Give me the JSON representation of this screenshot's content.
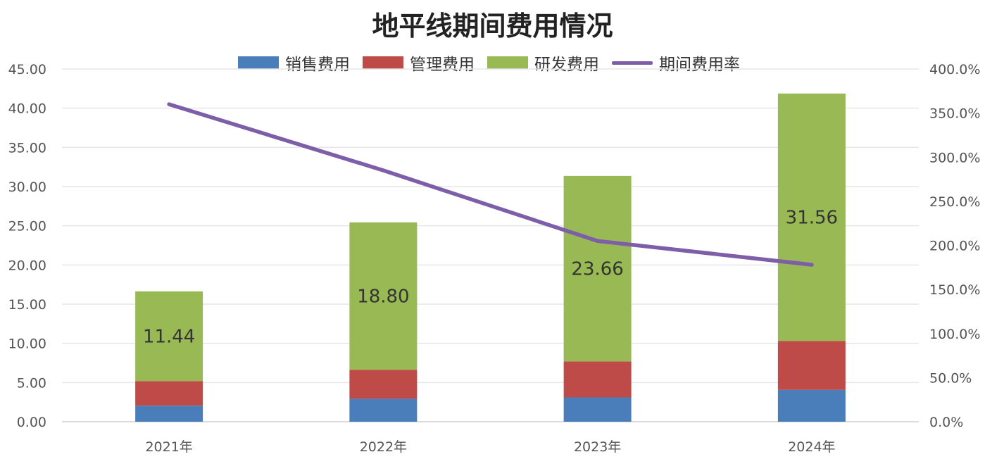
{
  "chart_data": {
    "type": "bar",
    "stacked": true,
    "title": "地平线期间费用情况",
    "categories": [
      "2021年",
      "2022年",
      "2023年",
      "2024年"
    ],
    "series": [
      {
        "name": "销售费用",
        "kind": "bar",
        "axis": "left",
        "color": "#4a7ebb",
        "values": [
          2.05,
          2.93,
          3.1,
          4.06
        ]
      },
      {
        "name": "管理费用",
        "kind": "bar",
        "axis": "left",
        "color": "#be4b48",
        "values": [
          3.14,
          3.7,
          4.6,
          6.25
        ]
      },
      {
        "name": "研发费用",
        "kind": "bar",
        "axis": "left",
        "color": "#98b954",
        "values": [
          11.44,
          18.8,
          23.66,
          31.56
        ],
        "data_labels": [
          "11.44",
          "18.80",
          "23.66",
          "31.56"
        ]
      },
      {
        "name": "期间费用率",
        "kind": "line",
        "axis": "right",
        "color": "#7e5ea8",
        "values": [
          360,
          285,
          205,
          178
        ]
      }
    ],
    "y_left": {
      "min": 0,
      "max": 45,
      "ticks": [
        "0.00",
        "5.00",
        "10.00",
        "15.00",
        "20.00",
        "25.00",
        "30.00",
        "35.00",
        "40.00",
        "45.00"
      ]
    },
    "y_right": {
      "min": 0,
      "max": 400,
      "ticks": [
        "0.0%",
        "50.0%",
        "100.0%",
        "150.0%",
        "200.0%",
        "250.0%",
        "300.0%",
        "350.0%",
        "400.0%"
      ]
    },
    "grid": true,
    "legend_position": "top"
  }
}
